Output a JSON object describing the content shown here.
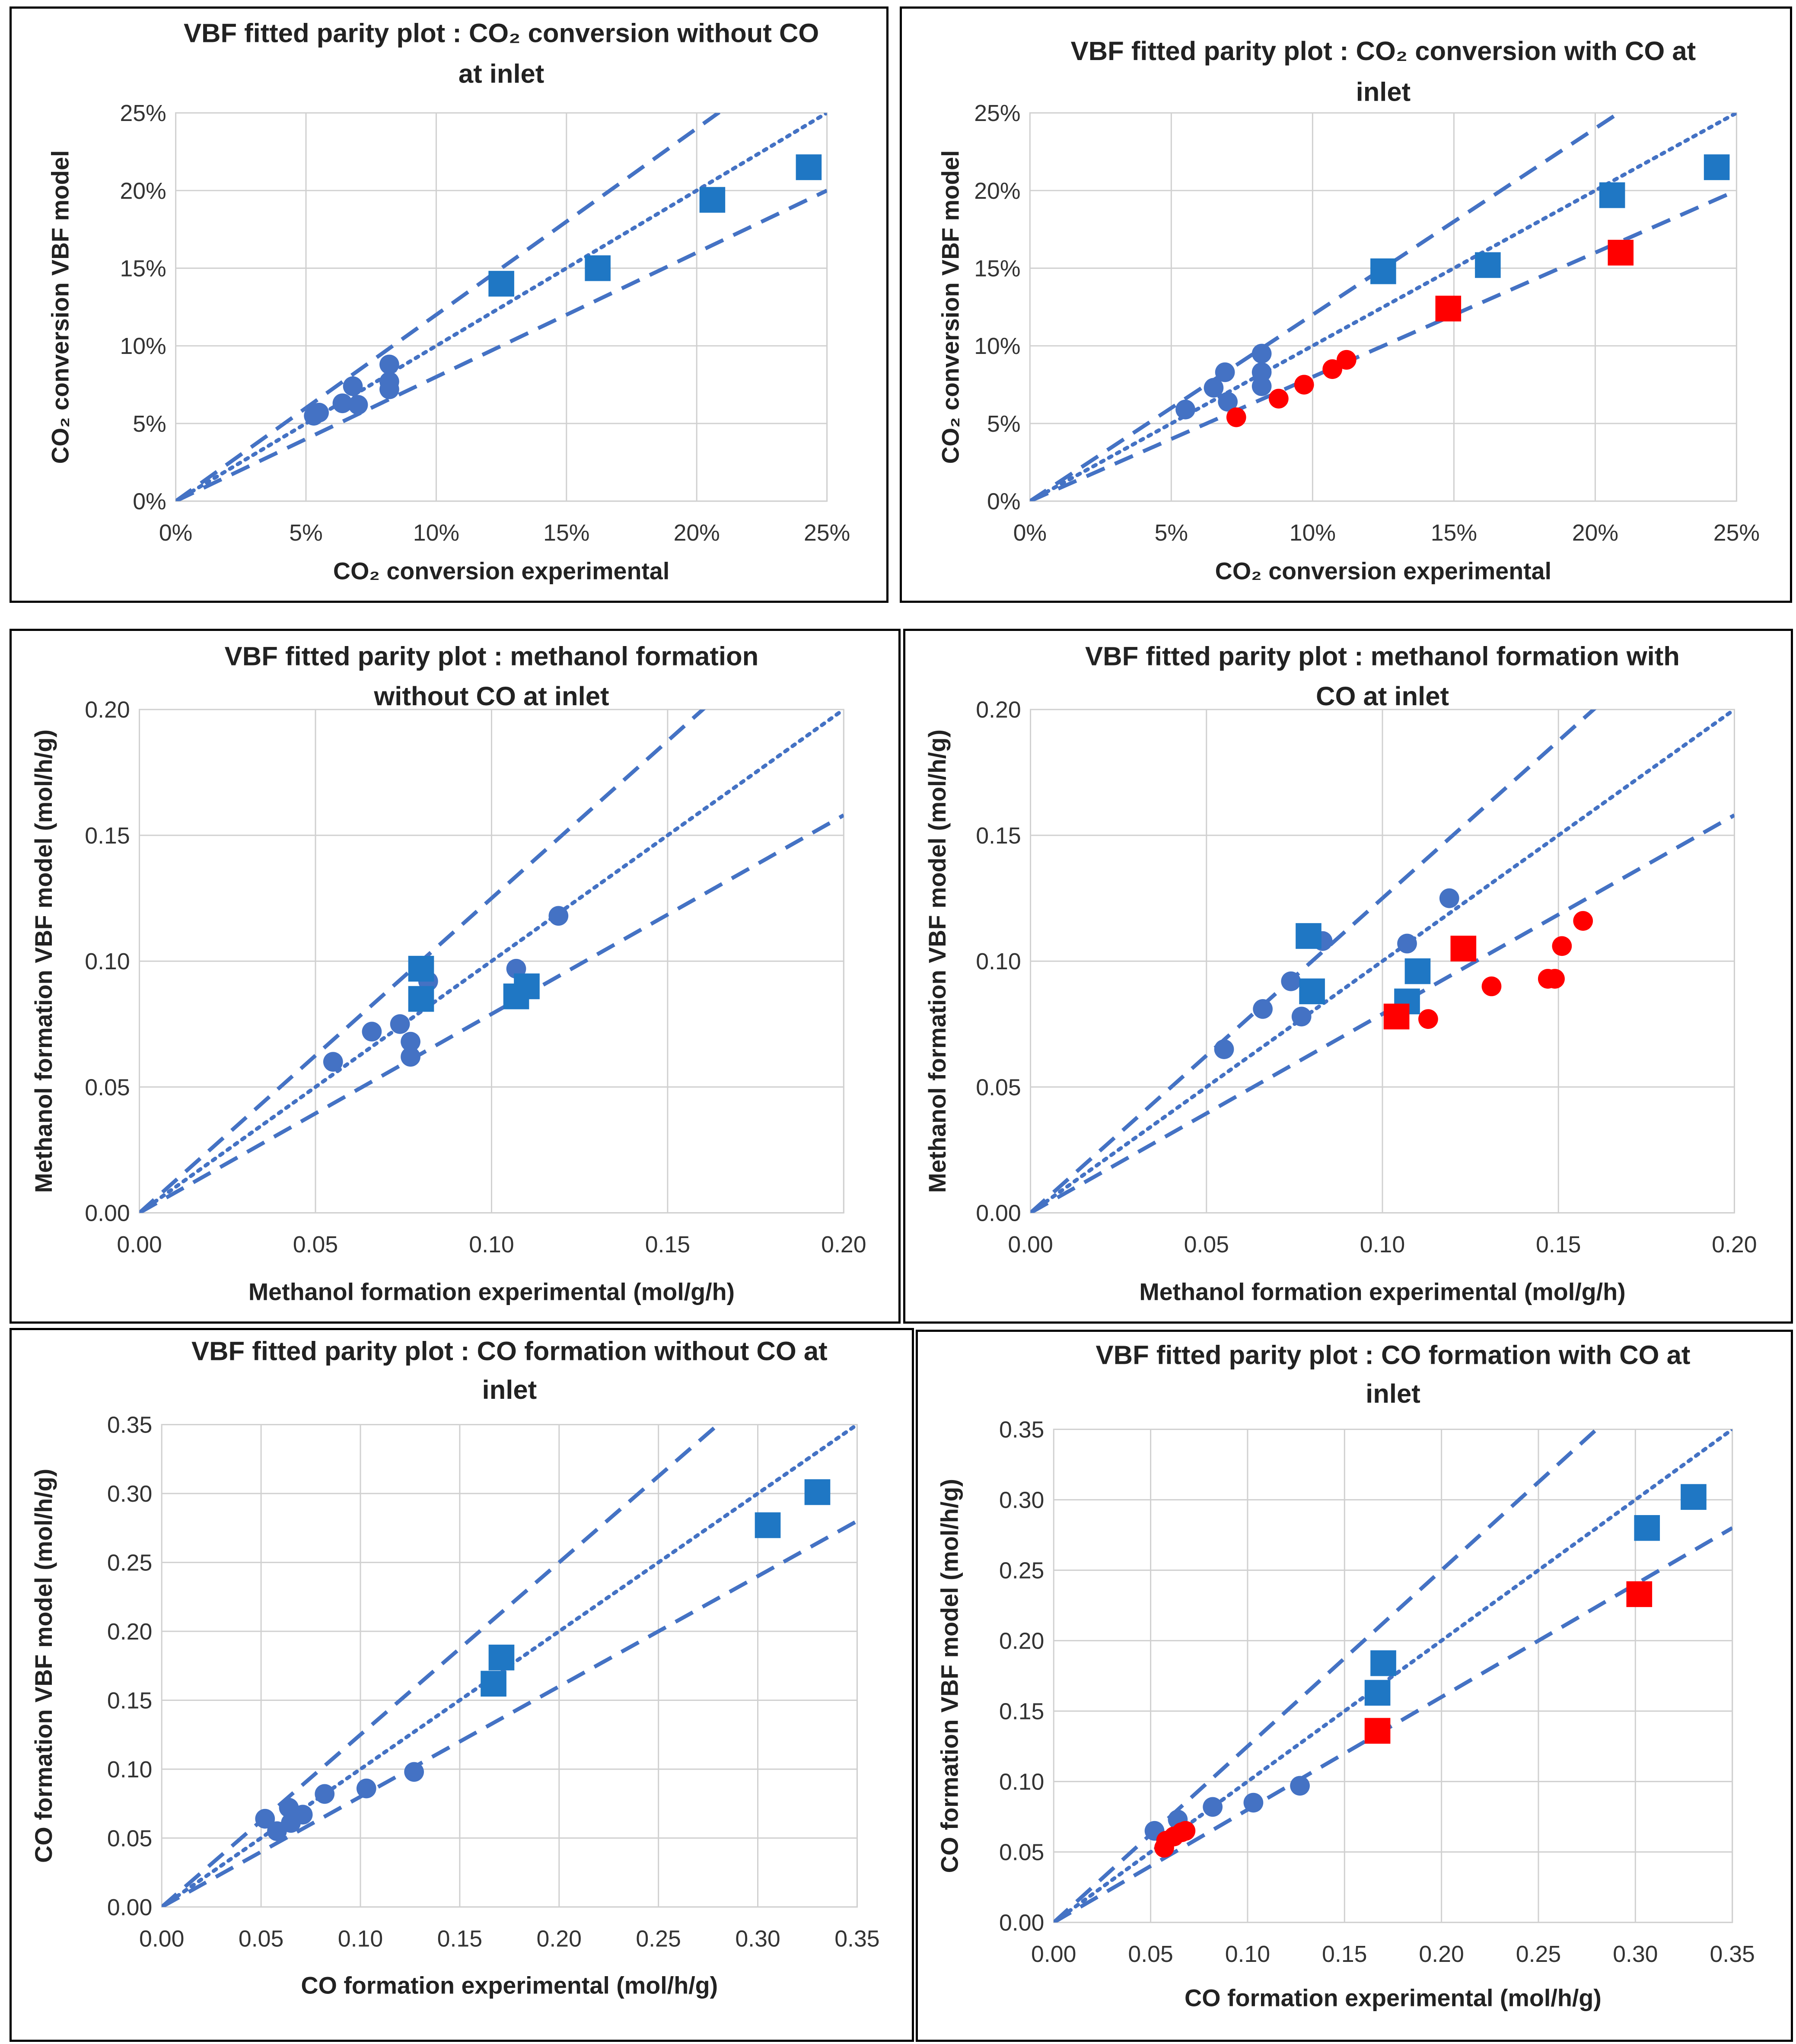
{
  "colors": {
    "blue_square": "#1f77c4",
    "blue_circle": "#4472c4",
    "red": "#ff0000",
    "line": "#4472c4",
    "grid": "#d0d0d0"
  },
  "chart_data": [
    {
      "type": "scatter",
      "title_lines": [
        "VBF fitted parity plot : CO₂ conversion without CO",
        "at inlet"
      ],
      "xlabel": "CO₂ conversion experimental",
      "ylabel": "CO₂ conversion VBF model",
      "xlim": [
        0,
        0.25
      ],
      "ylim": [
        0,
        0.25
      ],
      "xticks": [
        "0%",
        "5%",
        "10%",
        "15%",
        "20%",
        "25%"
      ],
      "yticks": [
        "0%",
        "5%",
        "10%",
        "15%",
        "20%",
        "25%"
      ],
      "parity_lines": {
        "y_equals_x": true,
        "upper_factor": 1.2,
        "lower_factor": 0.8
      },
      "series": [
        {
          "name": "blue circles",
          "marker": "circle",
          "color": "#4472c4",
          "points": [
            [
              0.053,
              0.055
            ],
            [
              0.055,
              0.057
            ],
            [
              0.064,
              0.063
            ],
            [
              0.068,
              0.074
            ],
            [
              0.07,
              0.062
            ],
            [
              0.082,
              0.088
            ],
            [
              0.082,
              0.077
            ],
            [
              0.082,
              0.072
            ]
          ]
        },
        {
          "name": "blue squares",
          "marker": "square",
          "color": "#1f77c4",
          "points": [
            [
              0.125,
              0.14
            ],
            [
              0.162,
              0.15
            ],
            [
              0.206,
              0.194
            ],
            [
              0.243,
              0.215
            ]
          ]
        }
      ]
    },
    {
      "type": "scatter",
      "title_lines": [
        "VBF fitted parity plot : CO₂ conversion with CO at",
        "inlet"
      ],
      "xlabel": "CO₂ conversion experimental",
      "ylabel": "CO₂ conversion VBF  model",
      "xlim": [
        0,
        0.25
      ],
      "ylim": [
        0,
        0.25
      ],
      "xticks": [
        "0%",
        "5%",
        "10%",
        "15%",
        "20%",
        "25%"
      ],
      "yticks": [
        "0%",
        "5%",
        "10%",
        "15%",
        "20%",
        "25%"
      ],
      "parity_lines": {
        "y_equals_x": true,
        "upper_factor": 1.2,
        "lower_factor": 0.8
      },
      "series": [
        {
          "name": "blue circles",
          "marker": "circle",
          "color": "#4472c4",
          "points": [
            [
              0.055,
              0.059
            ],
            [
              0.065,
              0.073
            ],
            [
              0.069,
              0.083
            ],
            [
              0.07,
              0.064
            ],
            [
              0.082,
              0.095
            ],
            [
              0.082,
              0.083
            ],
            [
              0.082,
              0.074
            ]
          ]
        },
        {
          "name": "blue squares",
          "marker": "square",
          "color": "#1f77c4",
          "points": [
            [
              0.125,
              0.148
            ],
            [
              0.162,
              0.152
            ],
            [
              0.206,
              0.197
            ],
            [
              0.243,
              0.215
            ]
          ]
        },
        {
          "name": "red circles",
          "marker": "circle",
          "color": "#ff0000",
          "points": [
            [
              0.073,
              0.054
            ],
            [
              0.088,
              0.066
            ],
            [
              0.097,
              0.075
            ],
            [
              0.107,
              0.085
            ],
            [
              0.112,
              0.091
            ]
          ]
        },
        {
          "name": "red squares",
          "marker": "square",
          "color": "#ff0000",
          "points": [
            [
              0.148,
              0.124
            ],
            [
              0.209,
              0.16
            ]
          ]
        }
      ]
    },
    {
      "type": "scatter",
      "title_lines": [
        "VBF fitted parity plot : methanol formation",
        "without CO at inlet"
      ],
      "xlabel": "Methanol formation experimental (mol/g/h)",
      "ylabel": "Methanol formation  VBF model (mol/h/g)",
      "xlim": [
        0,
        0.2
      ],
      "ylim": [
        0,
        0.2
      ],
      "xticks": [
        "0.00",
        "0.05",
        "0.10",
        "0.15",
        "0.20"
      ],
      "yticks": [
        "0.00",
        "0.05",
        "0.10",
        "0.15",
        "0.20"
      ],
      "parity_lines": {
        "y_equals_x": true,
        "upper_factor": 1.25,
        "lower_factor": 0.79
      },
      "series": [
        {
          "name": "blue circles",
          "marker": "circle",
          "color": "#4472c4",
          "points": [
            [
              0.055,
              0.06
            ],
            [
              0.066,
              0.072
            ],
            [
              0.074,
              0.075
            ],
            [
              0.077,
              0.068
            ],
            [
              0.077,
              0.062
            ],
            [
              0.082,
              0.092
            ],
            [
              0.107,
              0.097
            ],
            [
              0.119,
              0.118
            ]
          ]
        },
        {
          "name": "blue squares",
          "marker": "square",
          "color": "#1f77c4",
          "points": [
            [
              0.08,
              0.097
            ],
            [
              0.08,
              0.085
            ],
            [
              0.107,
              0.086
            ],
            [
              0.11,
              0.09
            ]
          ]
        }
      ]
    },
    {
      "type": "scatter",
      "title_lines": [
        "VBF fitted parity plot : methanol formation with",
        "CO at inlet"
      ],
      "xlabel": "Methanol formation experimental (mol/g/h)",
      "ylabel": "Methanol formation VBF  model (mol/h/g)",
      "xlim": [
        0,
        0.2
      ],
      "ylim": [
        0,
        0.2
      ],
      "xticks": [
        "0.00",
        "0.05",
        "0.10",
        "0.15",
        "0.20"
      ],
      "yticks": [
        "0.00",
        "0.05",
        "0.10",
        "0.15",
        "0.20"
      ],
      "parity_lines": {
        "y_equals_x": true,
        "upper_factor": 1.25,
        "lower_factor": 0.79
      },
      "series": [
        {
          "name": "blue circles",
          "marker": "circle",
          "color": "#4472c4",
          "points": [
            [
              0.055,
              0.065
            ],
            [
              0.066,
              0.081
            ],
            [
              0.074,
              0.092
            ],
            [
              0.077,
              0.078
            ],
            [
              0.083,
              0.108
            ],
            [
              0.107,
              0.107
            ],
            [
              0.119,
              0.125
            ]
          ]
        },
        {
          "name": "blue squares",
          "marker": "square",
          "color": "#1f77c4",
          "points": [
            [
              0.079,
              0.11
            ],
            [
              0.08,
              0.088
            ],
            [
              0.107,
              0.084
            ],
            [
              0.11,
              0.096
            ]
          ]
        },
        {
          "name": "red circles",
          "marker": "circle",
          "color": "#ff0000",
          "points": [
            [
              0.113,
              0.077
            ],
            [
              0.131,
              0.09
            ],
            [
              0.147,
              0.093
            ],
            [
              0.149,
              0.093
            ],
            [
              0.151,
              0.106
            ],
            [
              0.157,
              0.116
            ]
          ]
        },
        {
          "name": "red squares",
          "marker": "square",
          "color": "#ff0000",
          "points": [
            [
              0.104,
              0.078
            ],
            [
              0.123,
              0.105
            ]
          ]
        }
      ]
    },
    {
      "type": "scatter",
      "title_lines": [
        "VBF fitted parity plot : CO formation without CO at",
        "inlet"
      ],
      "xlabel": "CO formation experimental (mol/h/g)",
      "ylabel": "CO formation VBF model (mol/h/g)",
      "xlim": [
        0,
        0.35
      ],
      "ylim": [
        0,
        0.35
      ],
      "xticks": [
        "0.00",
        "0.05",
        "0.10",
        "0.15",
        "0.20",
        "0.25",
        "0.30",
        "0.35"
      ],
      "yticks": [
        "0.00",
        "0.05",
        "0.10",
        "0.15",
        "0.20",
        "0.25",
        "0.30",
        "0.35"
      ],
      "parity_lines": {
        "y_equals_x": true,
        "upper_factor": 1.25,
        "lower_factor": 0.8
      },
      "series": [
        {
          "name": "blue circles",
          "marker": "circle",
          "color": "#4472c4",
          "points": [
            [
              0.052,
              0.064
            ],
            [
              0.058,
              0.055
            ],
            [
              0.064,
              0.072
            ],
            [
              0.065,
              0.061
            ],
            [
              0.071,
              0.067
            ],
            [
              0.082,
              0.082
            ],
            [
              0.103,
              0.086
            ],
            [
              0.127,
              0.098
            ]
          ]
        },
        {
          "name": "blue squares",
          "marker": "square",
          "color": "#1f77c4",
          "points": [
            [
              0.167,
              0.162
            ],
            [
              0.171,
              0.181
            ],
            [
              0.305,
              0.277
            ],
            [
              0.33,
              0.301
            ]
          ]
        }
      ]
    },
    {
      "type": "scatter",
      "title_lines": [
        "VBF fitted parity plot : CO formation with CO at",
        "inlet"
      ],
      "xlabel": "CO formation experimental (mol/h/g)",
      "ylabel": "CO formation  VBF model (mol/h/g)",
      "xlim": [
        0,
        0.35
      ],
      "ylim": [
        0,
        0.35
      ],
      "xticks": [
        "0.00",
        "0.05",
        "0.10",
        "0.15",
        "0.20",
        "0.25",
        "0.30",
        "0.35"
      ],
      "yticks": [
        "0.00",
        "0.05",
        "0.10",
        "0.15",
        "0.20",
        "0.25",
        "0.30",
        "0.35"
      ],
      "parity_lines": {
        "y_equals_x": true,
        "upper_factor": 1.25,
        "lower_factor": 0.8
      },
      "series": [
        {
          "name": "blue circles",
          "marker": "circle",
          "color": "#4472c4",
          "points": [
            [
              0.052,
              0.065
            ],
            [
              0.064,
              0.073
            ],
            [
              0.082,
              0.082
            ],
            [
              0.103,
              0.085
            ],
            [
              0.127,
              0.097
            ]
          ]
        },
        {
          "name": "blue squares",
          "marker": "square",
          "color": "#1f77c4",
          "points": [
            [
              0.167,
              0.163
            ],
            [
              0.17,
              0.184
            ],
            [
              0.306,
              0.28
            ],
            [
              0.33,
              0.302
            ]
          ]
        },
        {
          "name": "red circles",
          "marker": "circle",
          "color": "#ff0000",
          "points": [
            [
              0.057,
              0.053
            ],
            [
              0.058,
              0.058
            ],
            [
              0.062,
              0.061
            ],
            [
              0.066,
              0.064
            ],
            [
              0.068,
              0.065
            ]
          ]
        },
        {
          "name": "red squares",
          "marker": "square",
          "color": "#ff0000",
          "points": [
            [
              0.167,
              0.136
            ],
            [
              0.302,
              0.233
            ]
          ]
        }
      ]
    }
  ]
}
